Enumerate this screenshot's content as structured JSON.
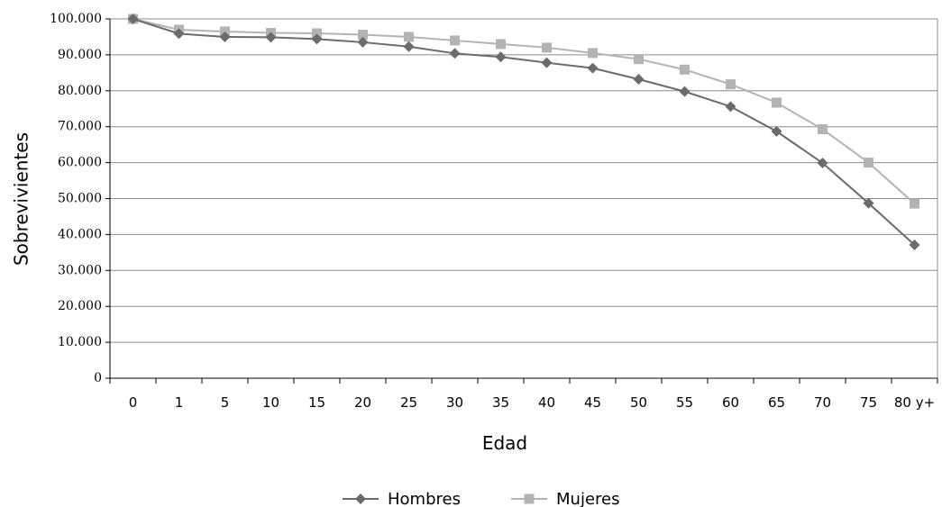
{
  "chart_data": {
    "type": "line",
    "title": "",
    "xlabel": "Edad",
    "ylabel": "Sobrevivientes",
    "ylim": [
      0,
      100000
    ],
    "yticks": [
      {
        "value": 0,
        "label": "0"
      },
      {
        "value": 10000,
        "label": "10.000"
      },
      {
        "value": 20000,
        "label": "20.000"
      },
      {
        "value": 30000,
        "label": "30.000"
      },
      {
        "value": 40000,
        "label": "40.000"
      },
      {
        "value": 50000,
        "label": "50.000"
      },
      {
        "value": 60000,
        "label": "60.000"
      },
      {
        "value": 70000,
        "label": "70.000"
      },
      {
        "value": 80000,
        "label": "80.000"
      },
      {
        "value": 90000,
        "label": "90.000"
      },
      {
        "value": 100000,
        "label": "100.000"
      }
    ],
    "categories": [
      "0",
      "1",
      "5",
      "10",
      "15",
      "20",
      "25",
      "30",
      "35",
      "40",
      "45",
      "50",
      "55",
      "60",
      "65",
      "70",
      "75",
      "80 y+"
    ],
    "grid": true,
    "legend_position": "bottom",
    "series": [
      {
        "name": "Hombres",
        "marker": "diamond",
        "color": "#6b6b6b",
        "values": [
          100000,
          95900,
          95000,
          94900,
          94400,
          93500,
          92300,
          90400,
          89400,
          87800,
          86300,
          83200,
          79800,
          75600,
          68700,
          59900,
          48700,
          37100
        ]
      },
      {
        "name": "Mujeres",
        "marker": "square",
        "color": "#b3b3b3",
        "values": [
          100000,
          97000,
          96500,
          96100,
          96000,
          95600,
          95000,
          94000,
          93000,
          92000,
          90500,
          88800,
          85900,
          81800,
          76700,
          69300,
          60000,
          48600
        ]
      }
    ]
  }
}
